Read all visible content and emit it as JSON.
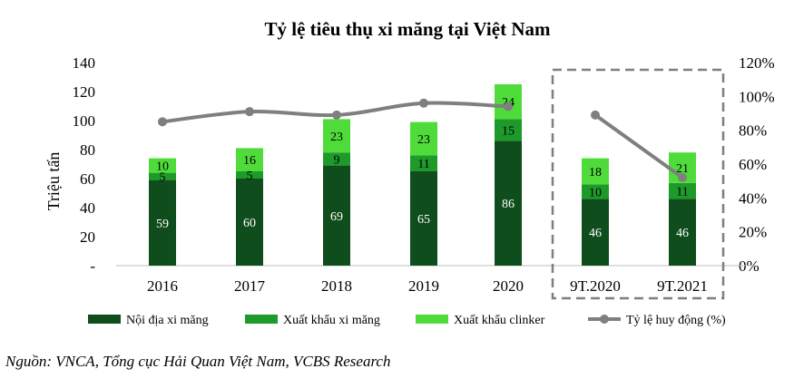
{
  "chart_data": {
    "type": "bar",
    "title": "Tỷ lệ tiêu thụ xi măng tại Việt Nam",
    "ylabel": "Triệu tấn",
    "categories": [
      "2016",
      "2017",
      "2018",
      "2019",
      "2020",
      "9T.2020",
      "9T.2021"
    ],
    "ylim": [
      0,
      140
    ],
    "y_ticks": [
      "-",
      "20",
      "40",
      "60",
      "80",
      "100",
      "120",
      "140"
    ],
    "y2lim": [
      0,
      1.2
    ],
    "y2_ticks": [
      "0%",
      "20%",
      "40%",
      "60%",
      "80%",
      "100%",
      "120%"
    ],
    "series": [
      {
        "name": "Nội địa xi măng",
        "kind": "bar",
        "color": "#0f4d1c",
        "label_color": "#ffffff",
        "values": [
          59,
          60,
          69,
          65,
          86,
          46,
          46
        ]
      },
      {
        "name": "Xuất khẩu xi măng",
        "kind": "bar",
        "color": "#1e9a2a",
        "label_color": "#000000",
        "values": [
          5,
          5,
          9,
          11,
          15,
          10,
          11
        ]
      },
      {
        "name": "Xuất khẩu clinker",
        "kind": "bar",
        "color": "#4fdc3a",
        "label_color": "#000000",
        "values": [
          10,
          16,
          23,
          23,
          24,
          18,
          21
        ]
      },
      {
        "name": "Tỷ lệ huy động (%)",
        "kind": "line",
        "axis": "right",
        "color": "#7f7f7f",
        "values": [
          0.85,
          0.91,
          0.89,
          0.96,
          0.94,
          0.89,
          0.52
        ]
      }
    ],
    "highlight_box_categories": [
      "9T.2020",
      "9T.2021"
    ],
    "grid": false,
    "legend": "bottom"
  },
  "source": "Nguồn: VNCA, Tổng cục Hải Quan Việt Nam, VCBS Research"
}
